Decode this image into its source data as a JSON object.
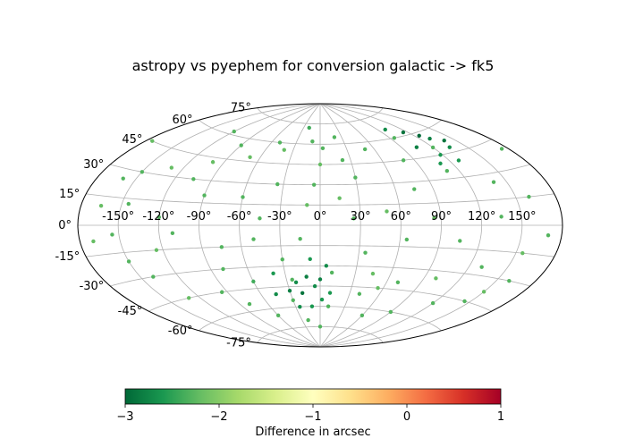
{
  "chart_data": {
    "type": "scatter",
    "projection": "aitoff",
    "title": "astropy vs pyephem for conversion galactic -> fk5",
    "grid": true,
    "lon_ticks": [
      -150,
      -120,
      -90,
      -60,
      -30,
      0,
      30,
      60,
      90,
      120,
      150
    ],
    "lon_tick_labels": [
      "-150°",
      "-120°",
      "-90°",
      "-60°",
      "-30°",
      "0°",
      "30°",
      "60°",
      "90°",
      "120°",
      "150°"
    ],
    "lat_ticks": [
      -75,
      -60,
      -45,
      -30,
      -15,
      0,
      15,
      30,
      45,
      60,
      75
    ],
    "lat_tick_labels": [
      "-75°",
      "-60°",
      "-45°",
      "-30°",
      "-15°",
      "0°",
      "15°",
      "30°",
      "45°",
      "60°",
      "75°"
    ],
    "colorbar": {
      "label": "Difference in arcsec",
      "colormap": "RdYlGn_r",
      "vmin": -3,
      "vmax": 1,
      "ticks": [
        -3,
        -2,
        -1,
        0,
        1
      ],
      "tick_labels": [
        "−3",
        "−2",
        "−1",
        "0",
        "1"
      ]
    },
    "point_color_hex": [
      "#006837",
      "#1a9850",
      "#66bd63",
      "#a6d96a"
    ],
    "series": [
      {
        "points": [
          [
            0,
            45,
            -2.2
          ],
          [
            3,
            57,
            -2.3
          ],
          [
            -10,
            62,
            -2.3
          ],
          [
            -40,
            55,
            -2.2
          ],
          [
            -70,
            48,
            -2.2
          ],
          [
            -100,
            42,
            -2.2
          ],
          [
            -130,
            35,
            -2.2
          ],
          [
            -160,
            25,
            -2.3
          ],
          [
            -145,
            12,
            -2.3
          ],
          [
            -120,
            5,
            -2.3
          ],
          [
            -110,
            -5,
            -2.3
          ],
          [
            -125,
            -15,
            -2.2
          ],
          [
            -150,
            -20,
            -2.3
          ],
          [
            -170,
            -8,
            -2.2
          ],
          [
            -165,
            10,
            -2.2
          ],
          [
            -90,
            20,
            -2.3
          ],
          [
            -80,
            -30,
            -2.3
          ],
          [
            -60,
            -40,
            -2.4
          ],
          [
            -30,
            -55,
            -2.3
          ],
          [
            10,
            -60,
            -2.3
          ],
          [
            40,
            -50,
            -2.3
          ],
          [
            70,
            -40,
            -2.3
          ],
          [
            100,
            -35,
            -2.2
          ],
          [
            130,
            -25,
            -2.3
          ],
          [
            155,
            -15,
            -2.2
          ],
          [
            170,
            -5,
            -2.3
          ],
          [
            160,
            15,
            -2.3
          ],
          [
            140,
            25,
            -2.3
          ],
          [
            110,
            35,
            -2.3
          ],
          [
            80,
            45,
            -2.3
          ],
          [
            50,
            55,
            -2.3
          ],
          [
            20,
            65,
            -2.3
          ],
          [
            -20,
            72,
            -2.4
          ],
          [
            -50,
            60,
            -2.3
          ],
          [
            -5,
            30,
            -2.3
          ],
          [
            15,
            20,
            -2.2
          ],
          [
            25,
            5,
            -2.3
          ],
          [
            -15,
            -10,
            -2.3
          ],
          [
            35,
            -20,
            -2.3
          ],
          [
            50,
            10,
            -2.2
          ],
          [
            65,
            -10,
            -2.3
          ],
          [
            85,
            5,
            -2.2
          ],
          [
            -45,
            5,
            -2.3
          ],
          [
            -60,
            20,
            -2.3
          ],
          [
            -75,
            -15,
            -2.3
          ],
          [
            -95,
            -45,
            -2.3
          ],
          [
            -130,
            -45,
            -2.2
          ],
          [
            120,
            -50,
            -2.3
          ],
          [
            150,
            -38,
            -2.2
          ],
          [
            175,
            40,
            -2.3
          ],
          [
            -175,
            45,
            -2.2
          ],
          [
            95,
            60,
            -2.3
          ],
          [
            -120,
            62,
            -2.3
          ],
          [
            60,
            -65,
            -2.3
          ],
          [
            -60,
            -65,
            -2.3
          ],
          [
            0,
            -75,
            -2.3
          ],
          [
            -35,
            30,
            -2.3
          ],
          [
            30,
            35,
            -2.3
          ],
          [
            75,
            25,
            -2.3
          ],
          [
            -140,
            -30,
            -2.3
          ],
          [
            45,
            -35,
            -2.2
          ],
          [
            -25,
            -40,
            -2.3
          ],
          [
            105,
            -10,
            -2.3
          ],
          [
            -105,
            30,
            -2.3
          ],
          [
            135,
            5,
            -2.3
          ],
          [
            -155,
            -5,
            -2.3
          ],
          [
            10,
            -35,
            -2.3
          ],
          [
            -10,
            15,
            -2.2
          ],
          [
            -30,
            -25,
            -2.3
          ],
          [
            22,
            48,
            -2.3
          ],
          [
            -80,
            -55,
            -2.3
          ],
          [
            90,
            -60,
            -2.3
          ],
          [
            160,
            -30,
            -2.3
          ],
          [
            -50,
            -10,
            -2.3
          ],
          [
            55,
            -45,
            -2.2
          ],
          [
            -90,
            55,
            -2.3
          ],
          [
            120,
            50,
            -2.3
          ],
          [
            -150,
            30,
            -2.3
          ],
          [
            145,
            -45,
            -2.3
          ],
          [
            -20,
            -70,
            -2.3
          ],
          [
            0,
            -40,
            -2.8
          ],
          [
            -5,
            -45,
            -2.7
          ],
          [
            -12,
            -38,
            -2.8
          ],
          [
            -18,
            -50,
            -2.9
          ],
          [
            -22,
            -42,
            -2.7
          ],
          [
            5,
            -30,
            -2.7
          ],
          [
            -30,
            -48,
            -2.8
          ],
          [
            2,
            -55,
            -2.6
          ],
          [
            -8,
            -25,
            -2.6
          ],
          [
            -40,
            -35,
            -2.6
          ],
          [
            -45,
            -50,
            -2.7
          ],
          [
            -10,
            -60,
            -2.6
          ],
          [
            10,
            -50,
            -2.6
          ],
          [
            -25,
            -60,
            -2.7
          ],
          [
            115,
            62,
            -2.9
          ],
          [
            125,
            58,
            -3.0
          ],
          [
            130,
            55,
            -2.8
          ],
          [
            135,
            48,
            -2.7
          ],
          [
            105,
            52,
            -2.8
          ],
          [
            118,
            45,
            -2.6
          ],
          [
            140,
            52,
            -2.9
          ],
          [
            100,
            66,
            -2.7
          ],
          [
            128,
            40,
            -2.6
          ],
          [
            110,
            40,
            -2.6
          ]
        ]
      }
    ]
  }
}
